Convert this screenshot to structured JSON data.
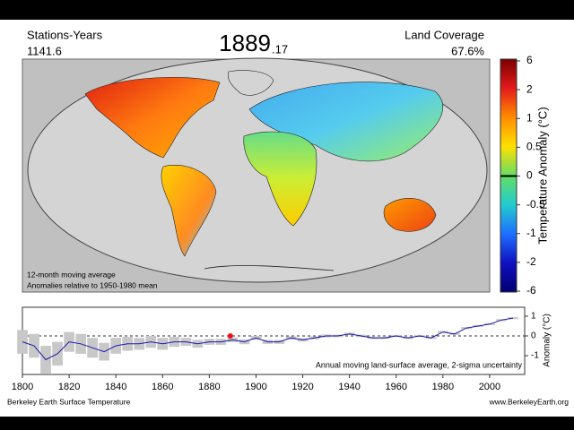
{
  "header": {
    "left_label": "Stations-Years",
    "left_value": "1141.6",
    "year": "1889",
    "year_fraction": ".17",
    "right_label": "Land Coverage",
    "right_value": "67.6%"
  },
  "map": {
    "notes": [
      "12-month moving average",
      "Anomalies relative to 1950-1980 mean"
    ]
  },
  "colorbar": {
    "label": "Temperature Anomaly (°C)",
    "ticks": [
      6,
      2,
      1,
      0.5,
      0,
      -0.5,
      -1,
      -2,
      -6
    ],
    "colors": [
      "#7a0000",
      "#e41a1c",
      "#ff8c00",
      "#ffe000",
      "#66dd66",
      "#22cccc",
      "#1e6fff",
      "#1010c0",
      "#000070"
    ]
  },
  "chart_data": {
    "type": "line",
    "color": "#1a1aaa",
    "band_color": "#c8c8c8",
    "x": [
      1800,
      1805,
      1810,
      1815,
      1820,
      1825,
      1830,
      1835,
      1840,
      1845,
      1850,
      1855,
      1860,
      1865,
      1870,
      1875,
      1880,
      1885,
      1890,
      1895,
      1900,
      1905,
      1910,
      1915,
      1920,
      1925,
      1930,
      1935,
      1940,
      1945,
      1950,
      1955,
      1960,
      1965,
      1970,
      1975,
      1980,
      1985,
      1990,
      1995,
      2000,
      2005,
      2010
    ],
    "values": [
      -0.3,
      -0.5,
      -1.2,
      -0.9,
      -0.3,
      -0.4,
      -0.6,
      -0.8,
      -0.5,
      -0.4,
      -0.4,
      -0.3,
      -0.4,
      -0.3,
      -0.3,
      -0.4,
      -0.3,
      -0.3,
      -0.2,
      -0.3,
      -0.1,
      -0.3,
      -0.3,
      -0.1,
      -0.2,
      -0.1,
      0.0,
      0.0,
      0.1,
      0.0,
      -0.1,
      -0.1,
      0.0,
      -0.1,
      0.0,
      -0.1,
      0.2,
      0.1,
      0.4,
      0.5,
      0.6,
      0.8,
      0.9
    ],
    "uncertainty": [
      0.6,
      0.6,
      0.7,
      0.6,
      0.5,
      0.5,
      0.5,
      0.45,
      0.4,
      0.35,
      0.3,
      0.3,
      0.3,
      0.25,
      0.2,
      0.2,
      0.15,
      0.15,
      0.12,
      0.12,
      0.1,
      0.1,
      0.1,
      0.08,
      0.08,
      0.07,
      0.07,
      0.06,
      0.06,
      0.06,
      0.05,
      0.05,
      0.05,
      0.05,
      0.05,
      0.05,
      0.05,
      0.05,
      0.05,
      0.05,
      0.05,
      0.05,
      0.05
    ],
    "xlim": [
      1800,
      2015
    ],
    "ylim": [
      -1.95,
      1.45
    ],
    "xticks": [
      1800,
      1820,
      1840,
      1860,
      1880,
      1900,
      1920,
      1940,
      1960,
      1980,
      2000
    ],
    "yticks": [
      1,
      0,
      -1
    ],
    "ylabel": "Anomaly (°C)",
    "annotation": "Annual moving land-surface average, 2-sigma uncertainty",
    "marker": {
      "x": 1889,
      "value": 0,
      "color": "#ee1111"
    }
  },
  "footer": {
    "left": "Berkeley Earth Surface Temperature",
    "right": "www.BerkeleyEarth.org"
  }
}
